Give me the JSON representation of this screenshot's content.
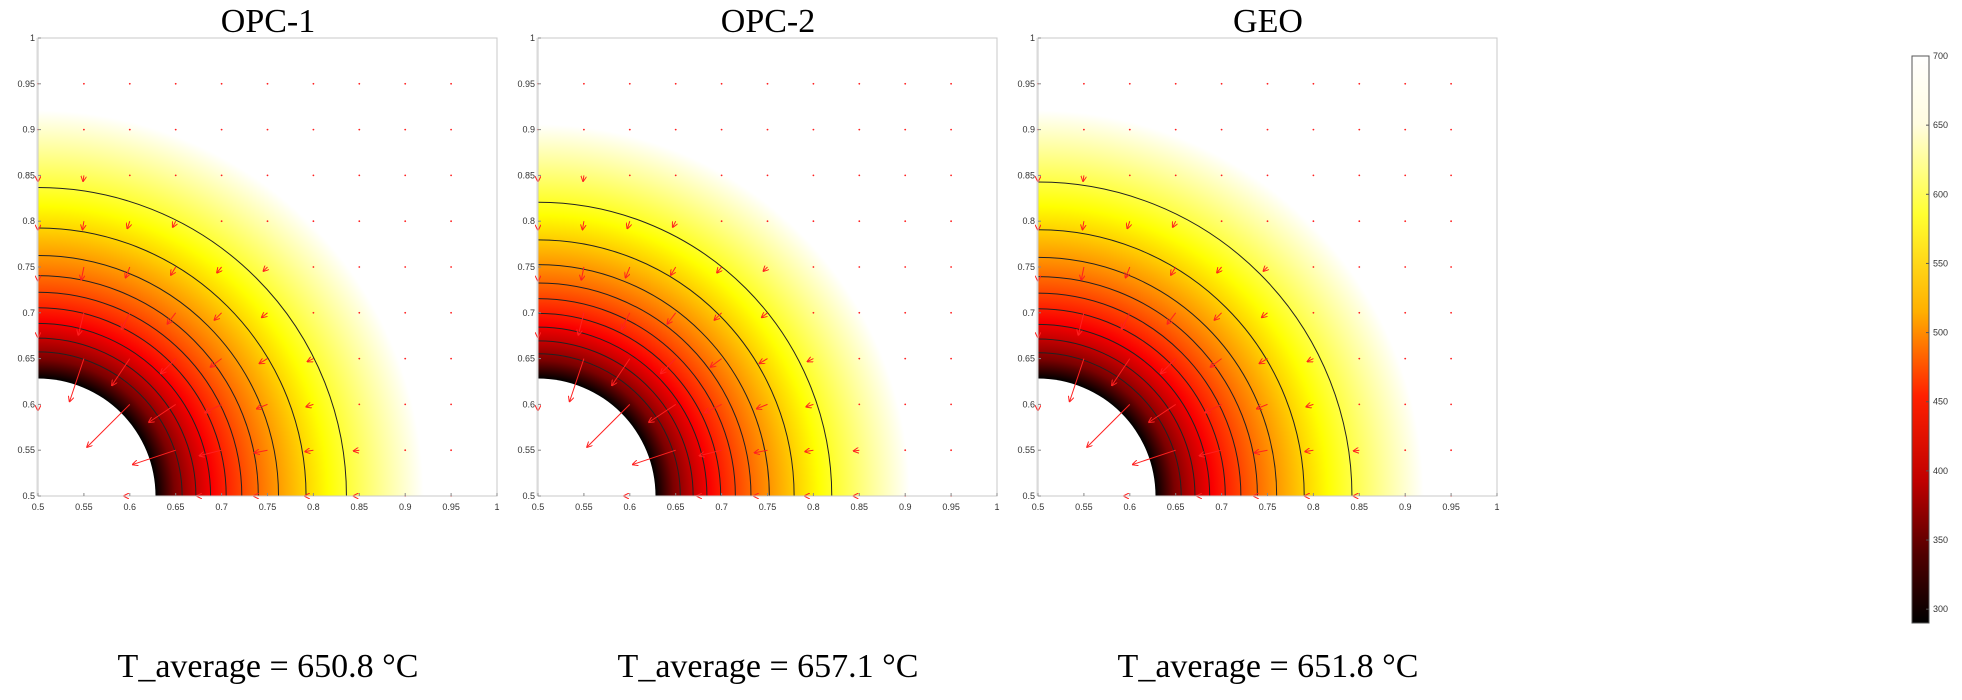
{
  "colors": {
    "arrow": "#ff2020",
    "contour": "#222222",
    "background": "#ffffff",
    "axis_band": "#ececec"
  },
  "chart_data": [
    {
      "type": "heatmap",
      "title": "OPC-1",
      "caption": "T_average = 650.8 °C",
      "xlim": [
        0.5,
        1
      ],
      "ylim": [
        0.5,
        1
      ],
      "xticks": [
        "0.5",
        "0.55",
        "0.6",
        "0.65",
        "0.7",
        "0.75",
        "0.8",
        "0.85",
        "0.9",
        "0.95",
        "1"
      ],
      "yticks": [
        "0.5",
        "0.55",
        "0.6",
        "0.65",
        "0.7",
        "0.75",
        "0.8",
        "0.85",
        "0.9",
        "0.95",
        "1"
      ],
      "inner_radius": 0.128,
      "gradient_outer_radius": 0.42,
      "contour_radii": [
        0.157,
        0.172,
        0.188,
        0.205,
        0.222,
        0.24,
        0.262,
        0.292,
        0.336
      ]
    },
    {
      "type": "heatmap",
      "title": "OPC-2",
      "caption": "T_average = 657.1 °C",
      "xlim": [
        0.5,
        1
      ],
      "ylim": [
        0.5,
        1
      ],
      "xticks": [
        "0.5",
        "0.55",
        "0.6",
        "0.65",
        "0.7",
        "0.75",
        "0.8",
        "0.85",
        "0.9",
        "0.95",
        "1"
      ],
      "yticks": [
        "0.5",
        "0.55",
        "0.6",
        "0.65",
        "0.7",
        "0.75",
        "0.8",
        "0.85",
        "0.9",
        "0.95",
        "1"
      ],
      "inner_radius": 0.128,
      "gradient_outer_radius": 0.405,
      "contour_radii": [
        0.155,
        0.169,
        0.184,
        0.199,
        0.215,
        0.232,
        0.252,
        0.279,
        0.32
      ]
    },
    {
      "type": "heatmap",
      "title": "GEO",
      "caption": "T_average = 651.8 °C",
      "xlim": [
        0.5,
        1
      ],
      "ylim": [
        0.5,
        1
      ],
      "xticks": [
        "0.5",
        "0.55",
        "0.6",
        "0.65",
        "0.7",
        "0.75",
        "0.8",
        "0.85",
        "0.9",
        "0.95",
        "1"
      ],
      "yticks": [
        "0.5",
        "0.55",
        "0.6",
        "0.65",
        "0.7",
        "0.75",
        "0.8",
        "0.85",
        "0.9",
        "0.95",
        "1"
      ],
      "inner_radius": 0.128,
      "gradient_outer_radius": 0.42,
      "contour_radii": [
        0.156,
        0.171,
        0.187,
        0.204,
        0.221,
        0.239,
        0.26,
        0.29,
        0.342
      ]
    }
  ],
  "colorbar": {
    "min": 290,
    "max": 700,
    "ticks": [
      "700",
      "650",
      "600",
      "550",
      "500",
      "450",
      "400",
      "350",
      "300"
    ]
  }
}
